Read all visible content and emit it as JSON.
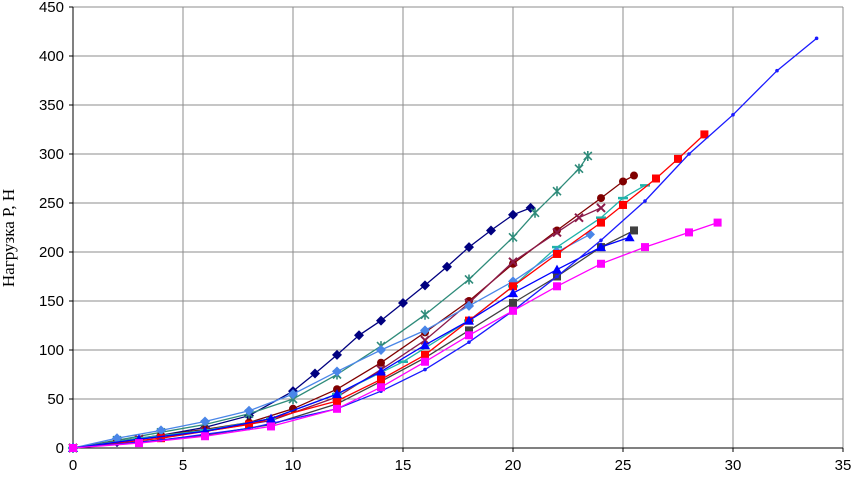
{
  "chart_data": {
    "type": "line",
    "title": "",
    "xlabel": "",
    "ylabel": "Нагрузка Р, Н",
    "xlim": [
      0,
      35
    ],
    "ylim": [
      0,
      450
    ],
    "x_ticks": [
      "0",
      "5",
      "10",
      "15",
      "20",
      "25",
      "30",
      "35"
    ],
    "y_ticks": [
      "0",
      "50",
      "100",
      "150",
      "200",
      "250",
      "300",
      "350",
      "400",
      "450"
    ],
    "grid": true,
    "legend": "none",
    "series": [
      {
        "color": "#000080",
        "marker": "diamond",
        "x": [
          0,
          2,
          4,
          6,
          8,
          10,
          11,
          12,
          13,
          14,
          15,
          16,
          17,
          18,
          19,
          20,
          20.8
        ],
        "y": [
          0,
          6,
          13,
          21,
          33,
          58,
          76,
          95,
          115,
          130,
          148,
          166,
          185,
          205,
          222,
          238,
          245
        ]
      },
      {
        "color": "#2e8b7a",
        "marker": "star",
        "x": [
          0,
          2,
          4,
          6,
          8,
          10,
          12,
          14,
          16,
          18,
          20,
          21,
          22,
          23,
          23.4
        ],
        "y": [
          0,
          8,
          16,
          24,
          35,
          50,
          75,
          104,
          136,
          172,
          215,
          240,
          262,
          285,
          298
        ]
      },
      {
        "color": "#800000",
        "marker": "circle",
        "x": [
          0,
          2,
          4,
          6,
          8,
          10,
          12,
          14,
          16,
          18,
          20,
          22,
          24,
          25,
          25.5
        ],
        "y": [
          0,
          7,
          13,
          19,
          26,
          40,
          60,
          87,
          118,
          150,
          188,
          222,
          255,
          272,
          278
        ]
      },
      {
        "color": "#8b1a4a",
        "marker": "x",
        "x": [
          0,
          3,
          6,
          9,
          12,
          14,
          16,
          18,
          20,
          22,
          23,
          24
        ],
        "y": [
          0,
          9,
          17,
          28,
          52,
          80,
          110,
          148,
          190,
          220,
          235,
          245
        ]
      },
      {
        "color": "#20b2aa",
        "marker": "dash",
        "x": [
          0,
          3,
          6,
          9,
          12,
          15,
          18,
          20,
          22,
          24,
          25,
          26
        ],
        "y": [
          0,
          10,
          18,
          30,
          55,
          88,
          130,
          165,
          205,
          235,
          255,
          268
        ]
      },
      {
        "color": "#4a86e8",
        "marker": "diamond",
        "x": [
          0,
          2,
          4,
          6,
          8,
          10,
          12,
          14,
          16,
          18,
          20,
          22,
          23.5
        ],
        "y": [
          0,
          10,
          18,
          27,
          38,
          55,
          78,
          100,
          120,
          145,
          170,
          200,
          218
        ]
      },
      {
        "color": "#404040",
        "marker": "square",
        "x": [
          0,
          3,
          6,
          9,
          12,
          14,
          16,
          18,
          20,
          22,
          24,
          25.5
        ],
        "y": [
          0,
          6,
          13,
          24,
          45,
          68,
          92,
          120,
          148,
          175,
          205,
          222
        ]
      },
      {
        "color": "#ff0000",
        "marker": "square",
        "x": [
          0,
          4,
          8,
          12,
          14,
          16,
          18,
          20,
          22,
          24,
          25,
          26.5,
          27.5,
          28.7
        ],
        "y": [
          0,
          10,
          24,
          48,
          70,
          95,
          130,
          165,
          198,
          230,
          248,
          275,
          295,
          320
        ]
      },
      {
        "color": "#0000ff",
        "marker": "triangle",
        "x": [
          0,
          3,
          6,
          9,
          12,
          14,
          16,
          18,
          20,
          22,
          24,
          25.3
        ],
        "y": [
          0,
          9,
          17,
          30,
          55,
          78,
          105,
          130,
          158,
          182,
          205,
          215
        ]
      },
      {
        "color": "#1a1aff",
        "marker": "dot",
        "x": [
          0,
          4,
          8,
          12,
          14,
          16,
          18,
          20,
          22,
          24,
          26,
          28,
          30,
          32,
          33.8
        ],
        "y": [
          0,
          8,
          20,
          40,
          58,
          80,
          108,
          140,
          175,
          212,
          252,
          300,
          340,
          385,
          418
        ]
      },
      {
        "color": "#ff00ff",
        "marker": "square",
        "x": [
          0,
          3,
          6,
          9,
          12,
          14,
          16,
          18,
          20,
          22,
          24,
          26,
          28,
          29.3
        ],
        "y": [
          0,
          5,
          12,
          22,
          40,
          62,
          88,
          115,
          140,
          165,
          188,
          205,
          220,
          230
        ]
      }
    ]
  }
}
